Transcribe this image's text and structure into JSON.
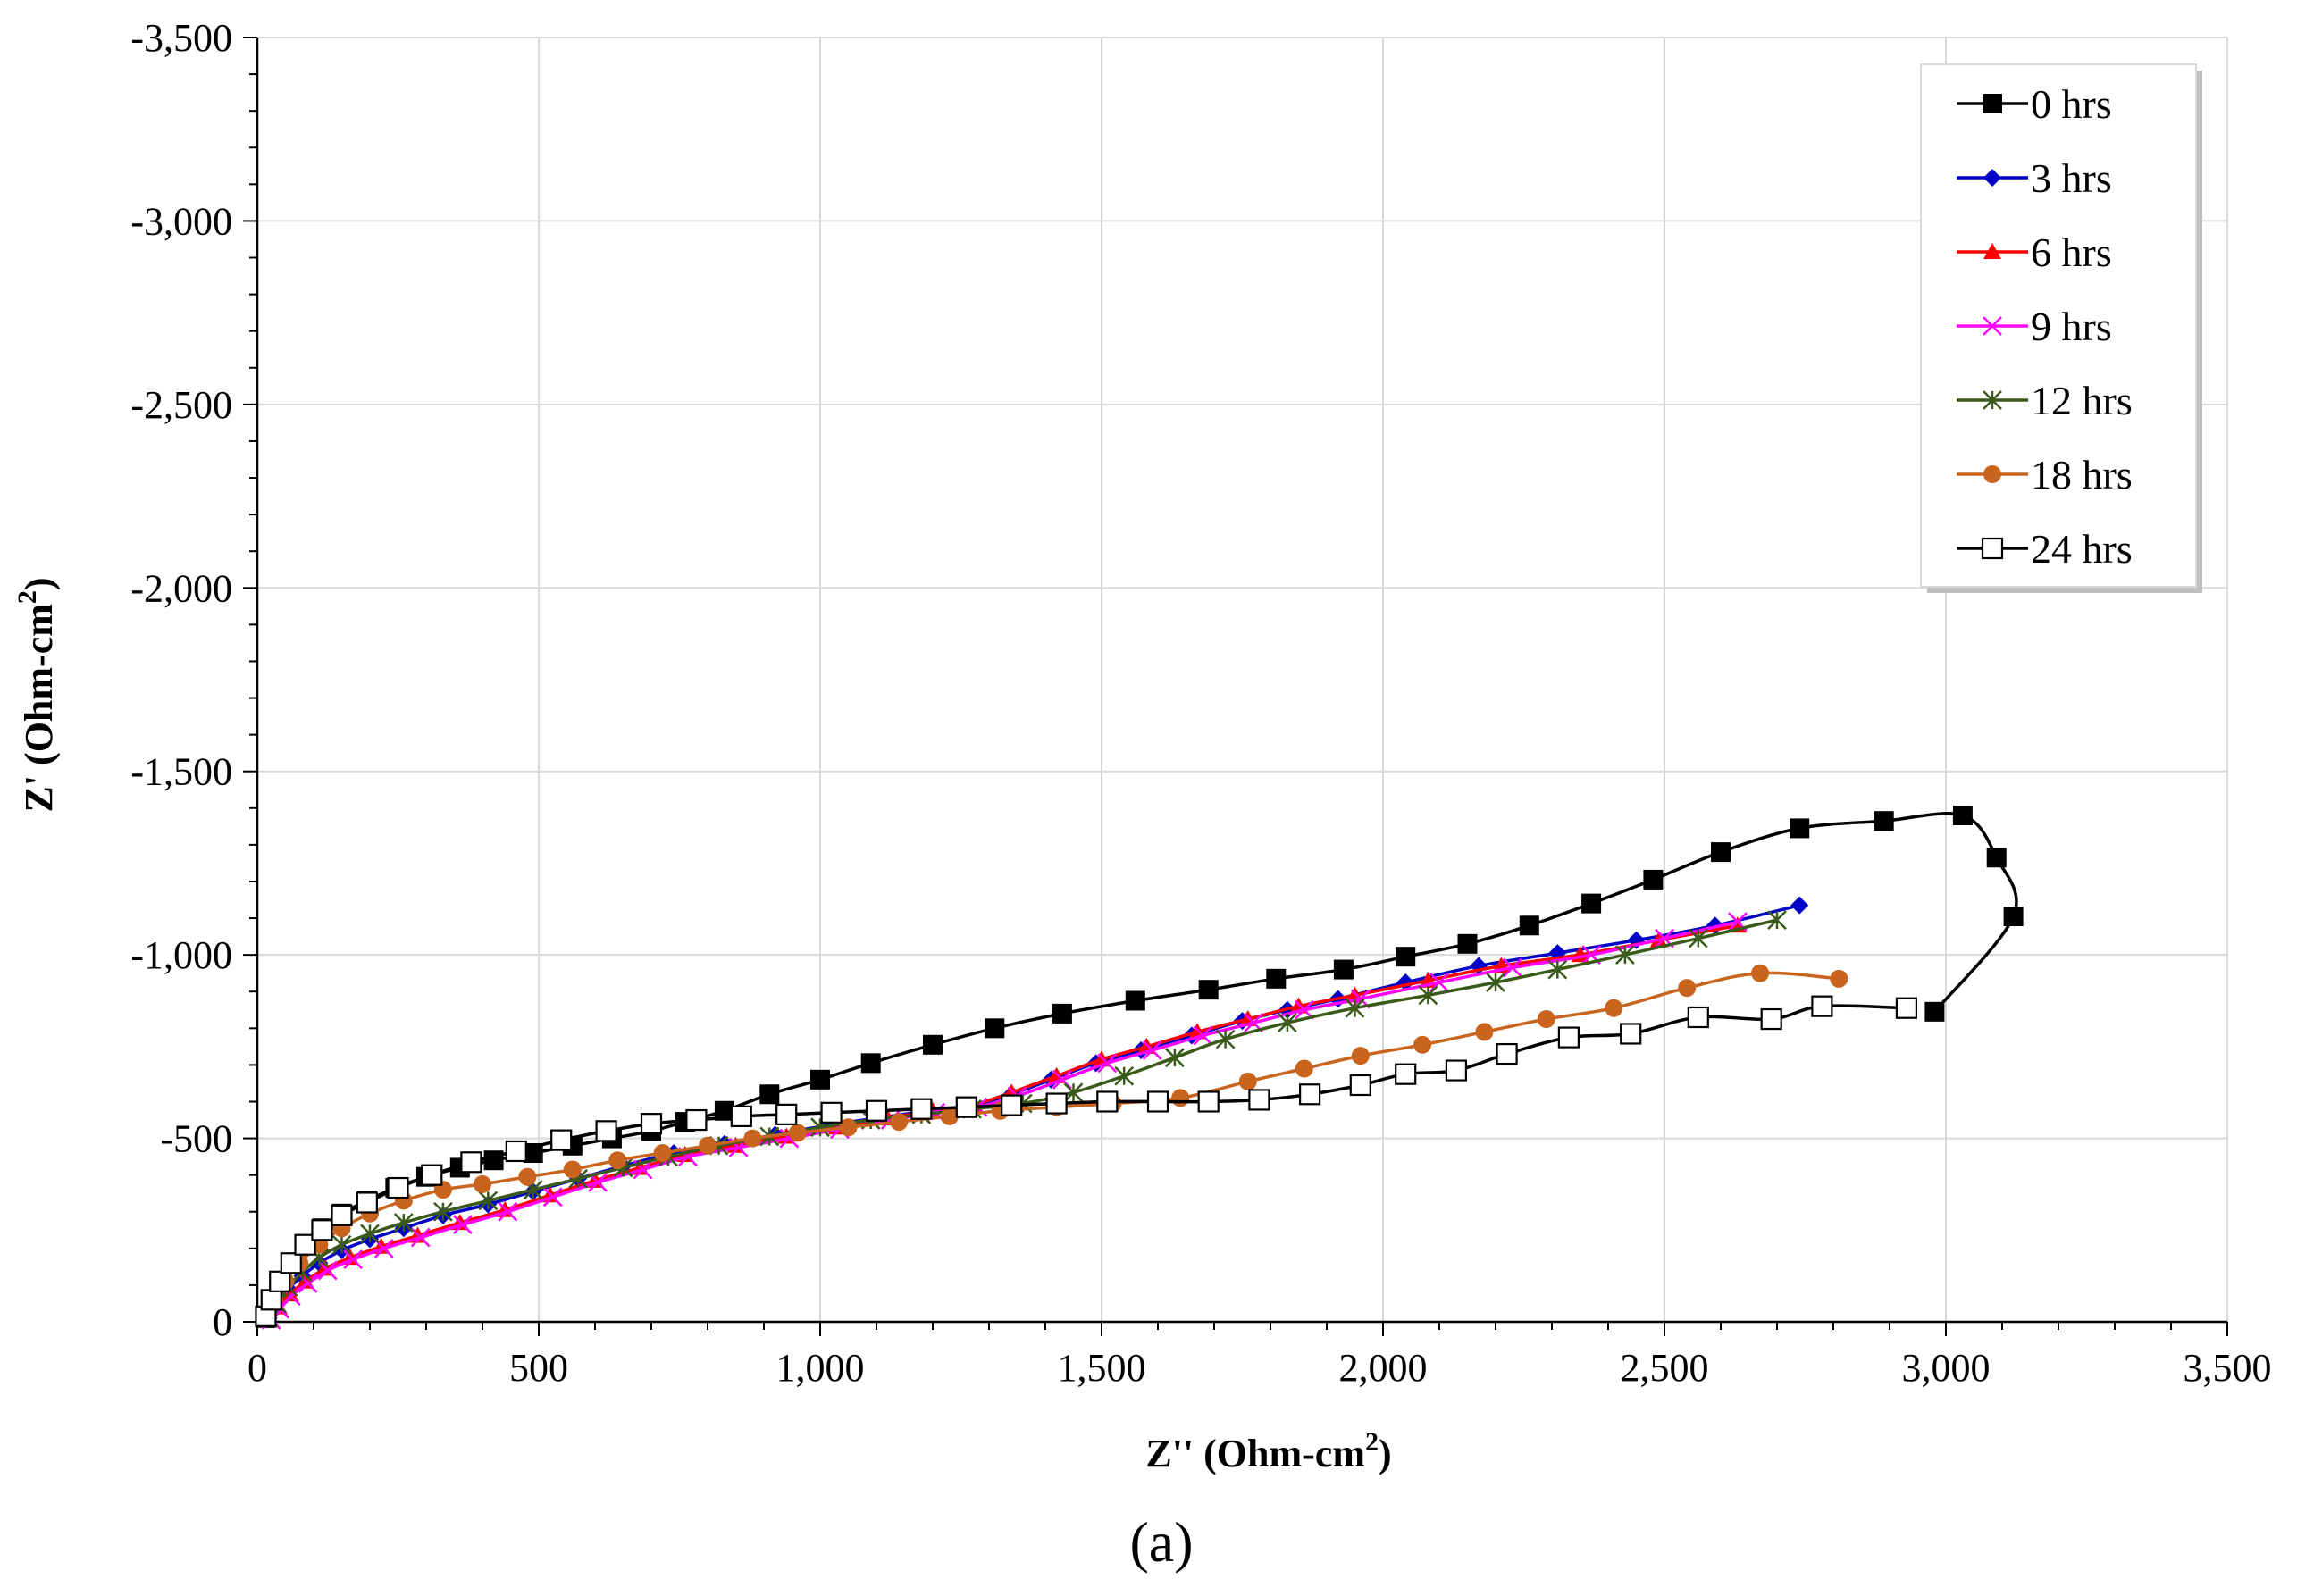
{
  "chart_data": {
    "type": "scatter",
    "title": "",
    "caption": "(a)",
    "xlabel": "Z'' (Ohm-cm",
    "xlabel_sup": "2",
    "xlabel_end": ")",
    "ylabel": "Z' (Ohm-cm",
    "ylabel_sup": "2",
    "ylabel_end": ")",
    "xlim": [
      0,
      3500
    ],
    "ylim": [
      0,
      -3500
    ],
    "x_ticks": [
      0,
      500,
      1000,
      1500,
      2000,
      2500,
      3000,
      3500
    ],
    "y_ticks": [
      0,
      -500,
      -1000,
      -1500,
      -2000,
      -2500,
      -3000,
      -3500
    ],
    "x_tick_labels": [
      "0",
      "500",
      "1,000",
      "1,500",
      "2,000",
      "2,500",
      "3,000",
      "3,500"
    ],
    "y_tick_labels": [
      "0",
      "-500",
      "-1,000",
      "-1,500",
      "-2,000",
      "-2,500",
      "-3,000",
      "-3,500"
    ],
    "grid": true,
    "legend_position": "top-right",
    "series": [
      {
        "name": "0 hrs",
        "color": "#000000",
        "marker": "square-filled",
        "points": [
          [
            15,
            -10
          ],
          [
            25,
            -60
          ],
          [
            40,
            -110
          ],
          [
            60,
            -160
          ],
          [
            85,
            -210
          ],
          [
            115,
            -255
          ],
          [
            150,
            -295
          ],
          [
            195,
            -330
          ],
          [
            245,
            -365
          ],
          [
            300,
            -395
          ],
          [
            360,
            -420
          ],
          [
            420,
            -440
          ],
          [
            490,
            -460
          ],
          [
            560,
            -480
          ],
          [
            630,
            -500
          ],
          [
            700,
            -520
          ],
          [
            760,
            -545
          ],
          [
            830,
            -575
          ],
          [
            910,
            -620
          ],
          [
            1000,
            -660
          ],
          [
            1090,
            -705
          ],
          [
            1200,
            -755
          ],
          [
            1310,
            -800
          ],
          [
            1430,
            -840
          ],
          [
            1560,
            -875
          ],
          [
            1690,
            -905
          ],
          [
            1810,
            -935
          ],
          [
            1930,
            -960
          ],
          [
            2040,
            -995
          ],
          [
            2150,
            -1030
          ],
          [
            2260,
            -1080
          ],
          [
            2370,
            -1140
          ],
          [
            2480,
            -1205
          ],
          [
            2600,
            -1280
          ],
          [
            2740,
            -1345
          ],
          [
            2890,
            -1365
          ],
          [
            3030,
            -1380
          ],
          [
            3090,
            -1265
          ],
          [
            3120,
            -1105
          ],
          [
            2980,
            -845
          ]
        ]
      },
      {
        "name": "3 hrs",
        "color": "#0000c8",
        "marker": "diamond-filled",
        "points": [
          [
            20,
            -10
          ],
          [
            35,
            -50
          ],
          [
            55,
            -90
          ],
          [
            80,
            -125
          ],
          [
            110,
            -160
          ],
          [
            150,
            -195
          ],
          [
            200,
            -225
          ],
          [
            260,
            -255
          ],
          [
            330,
            -290
          ],
          [
            410,
            -320
          ],
          [
            490,
            -355
          ],
          [
            570,
            -390
          ],
          [
            650,
            -425
          ],
          [
            740,
            -460
          ],
          [
            830,
            -485
          ],
          [
            920,
            -510
          ],
          [
            1010,
            -535
          ],
          [
            1100,
            -555
          ],
          [
            1190,
            -575
          ],
          [
            1270,
            -590
          ],
          [
            1340,
            -620
          ],
          [
            1410,
            -660
          ],
          [
            1490,
            -705
          ],
          [
            1570,
            -740
          ],
          [
            1660,
            -780
          ],
          [
            1750,
            -820
          ],
          [
            1830,
            -850
          ],
          [
            1920,
            -880
          ],
          [
            2040,
            -925
          ],
          [
            2170,
            -970
          ],
          [
            2310,
            -1005
          ],
          [
            2450,
            -1040
          ],
          [
            2590,
            -1080
          ],
          [
            2740,
            -1135
          ]
        ]
      },
      {
        "name": "6 hrs",
        "color": "#ff0000",
        "marker": "triangle-filled",
        "points": [
          [
            22,
            -5
          ],
          [
            38,
            -40
          ],
          [
            58,
            -75
          ],
          [
            85,
            -110
          ],
          [
            120,
            -145
          ],
          [
            165,
            -175
          ],
          [
            220,
            -205
          ],
          [
            285,
            -235
          ],
          [
            360,
            -270
          ],
          [
            440,
            -305
          ],
          [
            520,
            -345
          ],
          [
            600,
            -385
          ],
          [
            680,
            -420
          ],
          [
            760,
            -455
          ],
          [
            850,
            -480
          ],
          [
            940,
            -505
          ],
          [
            1030,
            -530
          ],
          [
            1120,
            -555
          ],
          [
            1200,
            -575
          ],
          [
            1270,
            -590
          ],
          [
            1340,
            -625
          ],
          [
            1420,
            -670
          ],
          [
            1500,
            -715
          ],
          [
            1580,
            -750
          ],
          [
            1670,
            -790
          ],
          [
            1760,
            -825
          ],
          [
            1850,
            -860
          ],
          [
            1950,
            -890
          ],
          [
            2080,
            -930
          ],
          [
            2210,
            -970
          ],
          [
            2350,
            -1000
          ],
          [
            2490,
            -1040
          ],
          [
            2630,
            -1080
          ]
        ]
      },
      {
        "name": "9 hrs",
        "color": "#ff00ff",
        "marker": "x",
        "points": [
          [
            25,
            -5
          ],
          [
            40,
            -35
          ],
          [
            60,
            -70
          ],
          [
            90,
            -105
          ],
          [
            125,
            -140
          ],
          [
            170,
            -170
          ],
          [
            225,
            -200
          ],
          [
            290,
            -230
          ],
          [
            365,
            -265
          ],
          [
            445,
            -300
          ],
          [
            525,
            -340
          ],
          [
            605,
            -380
          ],
          [
            685,
            -415
          ],
          [
            765,
            -450
          ],
          [
            855,
            -475
          ],
          [
            945,
            -500
          ],
          [
            1035,
            -525
          ],
          [
            1125,
            -550
          ],
          [
            1205,
            -570
          ],
          [
            1280,
            -585
          ],
          [
            1350,
            -615
          ],
          [
            1430,
            -660
          ],
          [
            1510,
            -705
          ],
          [
            1590,
            -740
          ],
          [
            1680,
            -780
          ],
          [
            1770,
            -815
          ],
          [
            1860,
            -850
          ],
          [
            1960,
            -880
          ],
          [
            2100,
            -925
          ],
          [
            2230,
            -965
          ],
          [
            2370,
            -1000
          ],
          [
            2500,
            -1045
          ],
          [
            2630,
            -1090
          ]
        ]
      },
      {
        "name": "12 hrs",
        "color": "#3a5a1a",
        "marker": "asterisk",
        "points": [
          [
            20,
            -10
          ],
          [
            35,
            -50
          ],
          [
            55,
            -95
          ],
          [
            80,
            -135
          ],
          [
            110,
            -175
          ],
          [
            150,
            -210
          ],
          [
            200,
            -240
          ],
          [
            260,
            -270
          ],
          [
            330,
            -300
          ],
          [
            410,
            -330
          ],
          [
            490,
            -360
          ],
          [
            570,
            -390
          ],
          [
            650,
            -420
          ],
          [
            730,
            -450
          ],
          [
            820,
            -480
          ],
          [
            910,
            -505
          ],
          [
            1000,
            -530
          ],
          [
            1090,
            -550
          ],
          [
            1180,
            -565
          ],
          [
            1270,
            -580
          ],
          [
            1360,
            -595
          ],
          [
            1450,
            -625
          ],
          [
            1540,
            -670
          ],
          [
            1630,
            -720
          ],
          [
            1720,
            -770
          ],
          [
            1830,
            -815
          ],
          [
            1950,
            -855
          ],
          [
            2080,
            -890
          ],
          [
            2200,
            -925
          ],
          [
            2310,
            -960
          ],
          [
            2430,
            -1000
          ],
          [
            2560,
            -1045
          ],
          [
            2700,
            -1095
          ]
        ]
      },
      {
        "name": "18 hrs",
        "color": "#c8641e",
        "marker": "circle-filled",
        "points": [
          [
            18,
            -15
          ],
          [
            30,
            -60
          ],
          [
            50,
            -110
          ],
          [
            75,
            -160
          ],
          [
            110,
            -210
          ],
          [
            150,
            -255
          ],
          [
            200,
            -295
          ],
          [
            260,
            -330
          ],
          [
            330,
            -360
          ],
          [
            400,
            -375
          ],
          [
            480,
            -395
          ],
          [
            560,
            -415
          ],
          [
            640,
            -440
          ],
          [
            720,
            -460
          ],
          [
            800,
            -480
          ],
          [
            880,
            -500
          ],
          [
            960,
            -515
          ],
          [
            1050,
            -530
          ],
          [
            1140,
            -545
          ],
          [
            1230,
            -560
          ],
          [
            1320,
            -575
          ],
          [
            1420,
            -585
          ],
          [
            1520,
            -595
          ],
          [
            1640,
            -610
          ],
          [
            1760,
            -655
          ],
          [
            1860,
            -690
          ],
          [
            1960,
            -725
          ],
          [
            2070,
            -755
          ],
          [
            2180,
            -790
          ],
          [
            2290,
            -825
          ],
          [
            2410,
            -855
          ],
          [
            2540,
            -910
          ],
          [
            2670,
            -950
          ],
          [
            2810,
            -935
          ]
        ]
      },
      {
        "name": "24 hrs",
        "color": "#000000",
        "marker": "square-open",
        "points": [
          [
            15,
            -15
          ],
          [
            25,
            -60
          ],
          [
            40,
            -110
          ],
          [
            60,
            -160
          ],
          [
            85,
            -210
          ],
          [
            115,
            -250
          ],
          [
            150,
            -290
          ],
          [
            195,
            -325
          ],
          [
            250,
            -365
          ],
          [
            310,
            -400
          ],
          [
            380,
            -435
          ],
          [
            460,
            -465
          ],
          [
            540,
            -495
          ],
          [
            620,
            -520
          ],
          [
            700,
            -540
          ],
          [
            780,
            -550
          ],
          [
            860,
            -560
          ],
          [
            940,
            -565
          ],
          [
            1020,
            -570
          ],
          [
            1100,
            -575
          ],
          [
            1180,
            -580
          ],
          [
            1260,
            -585
          ],
          [
            1340,
            -590
          ],
          [
            1420,
            -595
          ],
          [
            1510,
            -600
          ],
          [
            1600,
            -600
          ],
          [
            1690,
            -600
          ],
          [
            1780,
            -605
          ],
          [
            1870,
            -620
          ],
          [
            1960,
            -645
          ],
          [
            2040,
            -675
          ],
          [
            2130,
            -685
          ],
          [
            2220,
            -730
          ],
          [
            2330,
            -775
          ],
          [
            2440,
            -785
          ],
          [
            2560,
            -830
          ],
          [
            2690,
            -825
          ],
          [
            2780,
            -860
          ],
          [
            2930,
            -855
          ]
        ]
      }
    ]
  }
}
